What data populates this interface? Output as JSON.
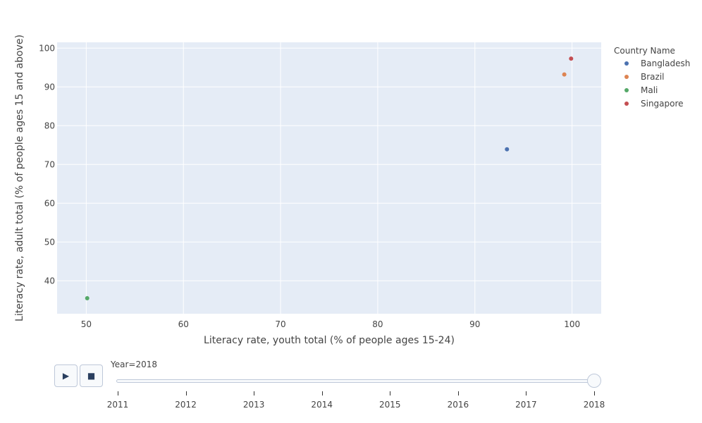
{
  "chart_data": {
    "type": "scatter",
    "xlabel": "Literacy rate, youth total (% of people ages 15-24)",
    "ylabel": "Literacy rate, adult total (% of people ages 15 and above)",
    "xlim": [
      47,
      103
    ],
    "ylim": [
      31.5,
      101.5
    ],
    "x_ticks": [
      50,
      60,
      70,
      80,
      90,
      100
    ],
    "y_ticks": [
      40,
      50,
      60,
      70,
      80,
      90,
      100
    ],
    "grid": true,
    "legend_title": "Country Name",
    "legend_position": "top-right outside",
    "series": [
      {
        "name": "Bangladesh",
        "color": "#4c72b0",
        "points": [
          {
            "x": 93.3,
            "y": 73.9
          }
        ]
      },
      {
        "name": "Brazil",
        "color": "#dd8452",
        "points": [
          {
            "x": 99.2,
            "y": 93.2
          }
        ]
      },
      {
        "name": "Mali",
        "color": "#55a868",
        "points": [
          {
            "x": 50.1,
            "y": 35.5
          }
        ]
      },
      {
        "name": "Singapore",
        "color": "#c44e52",
        "points": [
          {
            "x": 99.9,
            "y": 97.3
          }
        ]
      }
    ]
  },
  "animation_controls": {
    "play_icon": "play-icon",
    "play_symbol": "▶",
    "stop_icon": "stop-icon",
    "stop_symbol": "■",
    "slider_prefix": "Year=",
    "current_year": "2018",
    "years": [
      "2011",
      "2012",
      "2013",
      "2014",
      "2015",
      "2016",
      "2017",
      "2018"
    ]
  },
  "colors": {
    "plot_background": "#e5ecf6",
    "grid": "#ffffff",
    "control_border": "#bec8d9"
  }
}
